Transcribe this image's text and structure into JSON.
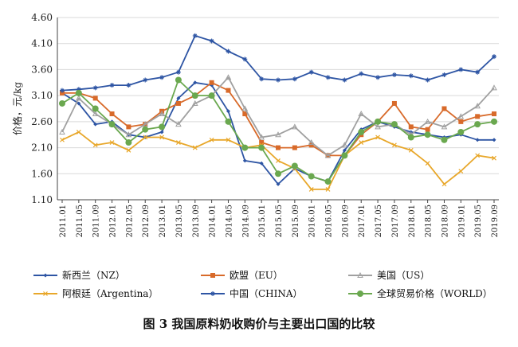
{
  "chart_data": {
    "type": "line",
    "title": "图 3  我国原料奶收购价与主要出口国的比较",
    "ylabel": "价格，元/kg",
    "ylim": [
      1.1,
      4.6
    ],
    "yticks": [
      "4.60",
      "4.10",
      "3.60",
      "3.10",
      "2.60",
      "2.10",
      "1.60",
      "1.10"
    ],
    "grid": "horizontal",
    "legend_position": "bottom",
    "x": [
      "2011.01",
      "2011.05",
      "2011.09",
      "2012.01",
      "2012.05",
      "2012.09",
      "2013.01",
      "2013.05",
      "2013.09",
      "2014.01",
      "2014.05",
      "2014.09",
      "2015.01",
      "2015.05",
      "2015.09",
      "2016.01",
      "2016.05",
      "2016.09",
      "2017.01",
      "2017.05",
      "2017.09",
      "2018.01",
      "2018.05",
      "2018.09",
      "2019.01",
      "2019.05",
      "2019.09"
    ],
    "series": [
      {
        "name": "新西兰（NZ）",
        "color": "#2e55a4",
        "marker": "diamond",
        "values": [
          3.15,
          2.95,
          2.55,
          2.6,
          2.35,
          2.3,
          2.4,
          3.05,
          3.35,
          3.3,
          2.8,
          1.85,
          1.8,
          1.4,
          1.7,
          1.55,
          1.45,
          2.05,
          2.45,
          2.6,
          2.5,
          2.4,
          2.35,
          2.3,
          2.35,
          2.25,
          2.25
        ]
      },
      {
        "name": "欧盟（EU）",
        "color": "#d86a2a",
        "marker": "square",
        "values": [
          3.15,
          3.15,
          3.05,
          2.75,
          2.5,
          2.55,
          2.8,
          2.95,
          3.1,
          3.35,
          3.2,
          2.75,
          2.2,
          2.1,
          2.1,
          2.15,
          1.95,
          1.95,
          2.35,
          2.6,
          2.95,
          2.5,
          2.45,
          2.85,
          2.6,
          2.7,
          2.75
        ]
      },
      {
        "name": "美国（US）",
        "color": "#a0a0a0",
        "marker": "triangle",
        "values": [
          2.4,
          3.05,
          2.75,
          2.55,
          2.35,
          2.55,
          2.75,
          2.55,
          2.95,
          3.1,
          3.45,
          2.85,
          2.3,
          2.35,
          2.5,
          2.2,
          1.95,
          2.15,
          2.75,
          2.5,
          2.55,
          2.35,
          2.6,
          2.5,
          2.7,
          2.9,
          3.25
        ]
      },
      {
        "name": "阿根廷（Argentina）",
        "color": "#e8a72a",
        "marker": "x",
        "values": [
          2.25,
          2.4,
          2.15,
          2.2,
          2.05,
          2.3,
          2.3,
          2.2,
          2.1,
          2.25,
          2.25,
          2.1,
          2.15,
          1.85,
          1.7,
          1.3,
          1.3,
          1.95,
          2.2,
          2.3,
          2.15,
          2.05,
          1.8,
          1.4,
          1.65,
          1.95,
          1.9
        ]
      },
      {
        "name": "中国（CHINA）",
        "color": "#2e55a4",
        "marker": "star",
        "values": [
          3.2,
          3.22,
          3.25,
          3.3,
          3.3,
          3.4,
          3.45,
          3.55,
          4.25,
          4.15,
          3.95,
          3.8,
          3.42,
          3.4,
          3.42,
          3.55,
          3.45,
          3.4,
          3.52,
          3.45,
          3.5,
          3.48,
          3.4,
          3.5,
          3.6,
          3.55,
          3.85
        ]
      },
      {
        "name": "全球贸易价格（WORLD）",
        "color": "#6aa84f",
        "marker": "circle",
        "values": [
          2.95,
          3.15,
          2.85,
          2.55,
          2.2,
          2.45,
          2.5,
          3.4,
          3.1,
          3.1,
          2.6,
          2.1,
          2.1,
          1.6,
          1.75,
          1.55,
          1.45,
          1.95,
          2.4,
          2.6,
          2.55,
          2.3,
          2.35,
          2.25,
          2.4,
          2.55,
          2.6
        ]
      }
    ]
  }
}
